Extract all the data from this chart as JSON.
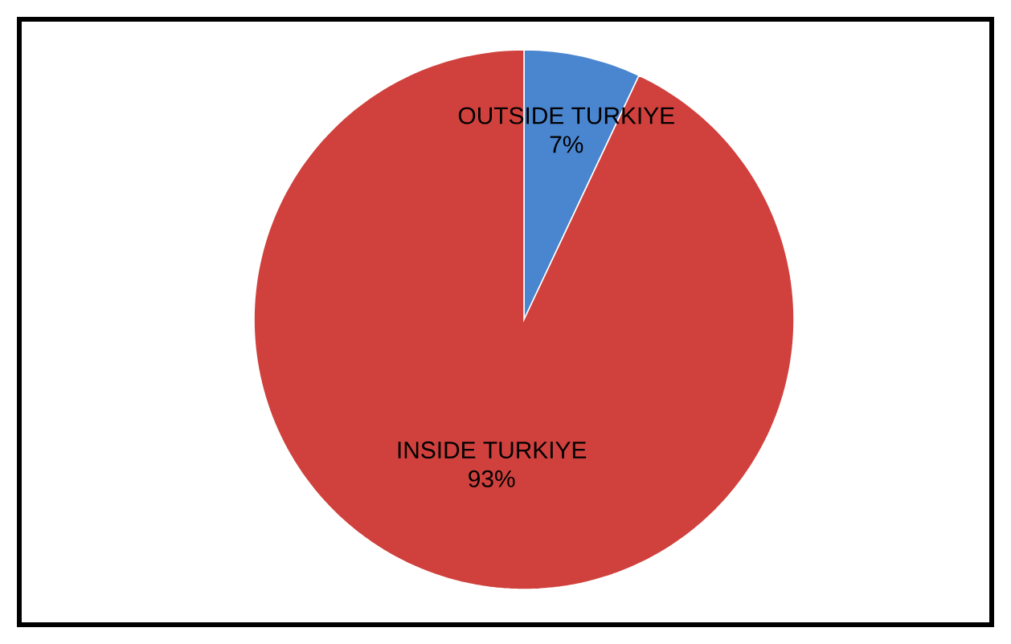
{
  "chart_data": {
    "type": "pie",
    "categories": [
      "OUTSIDE TURKIYE",
      "INSIDE TURKIYE"
    ],
    "values": [
      7,
      93
    ],
    "value_labels": [
      "7%",
      "93%"
    ],
    "colors": [
      "#4a86d0",
      "#d0413d"
    ]
  }
}
